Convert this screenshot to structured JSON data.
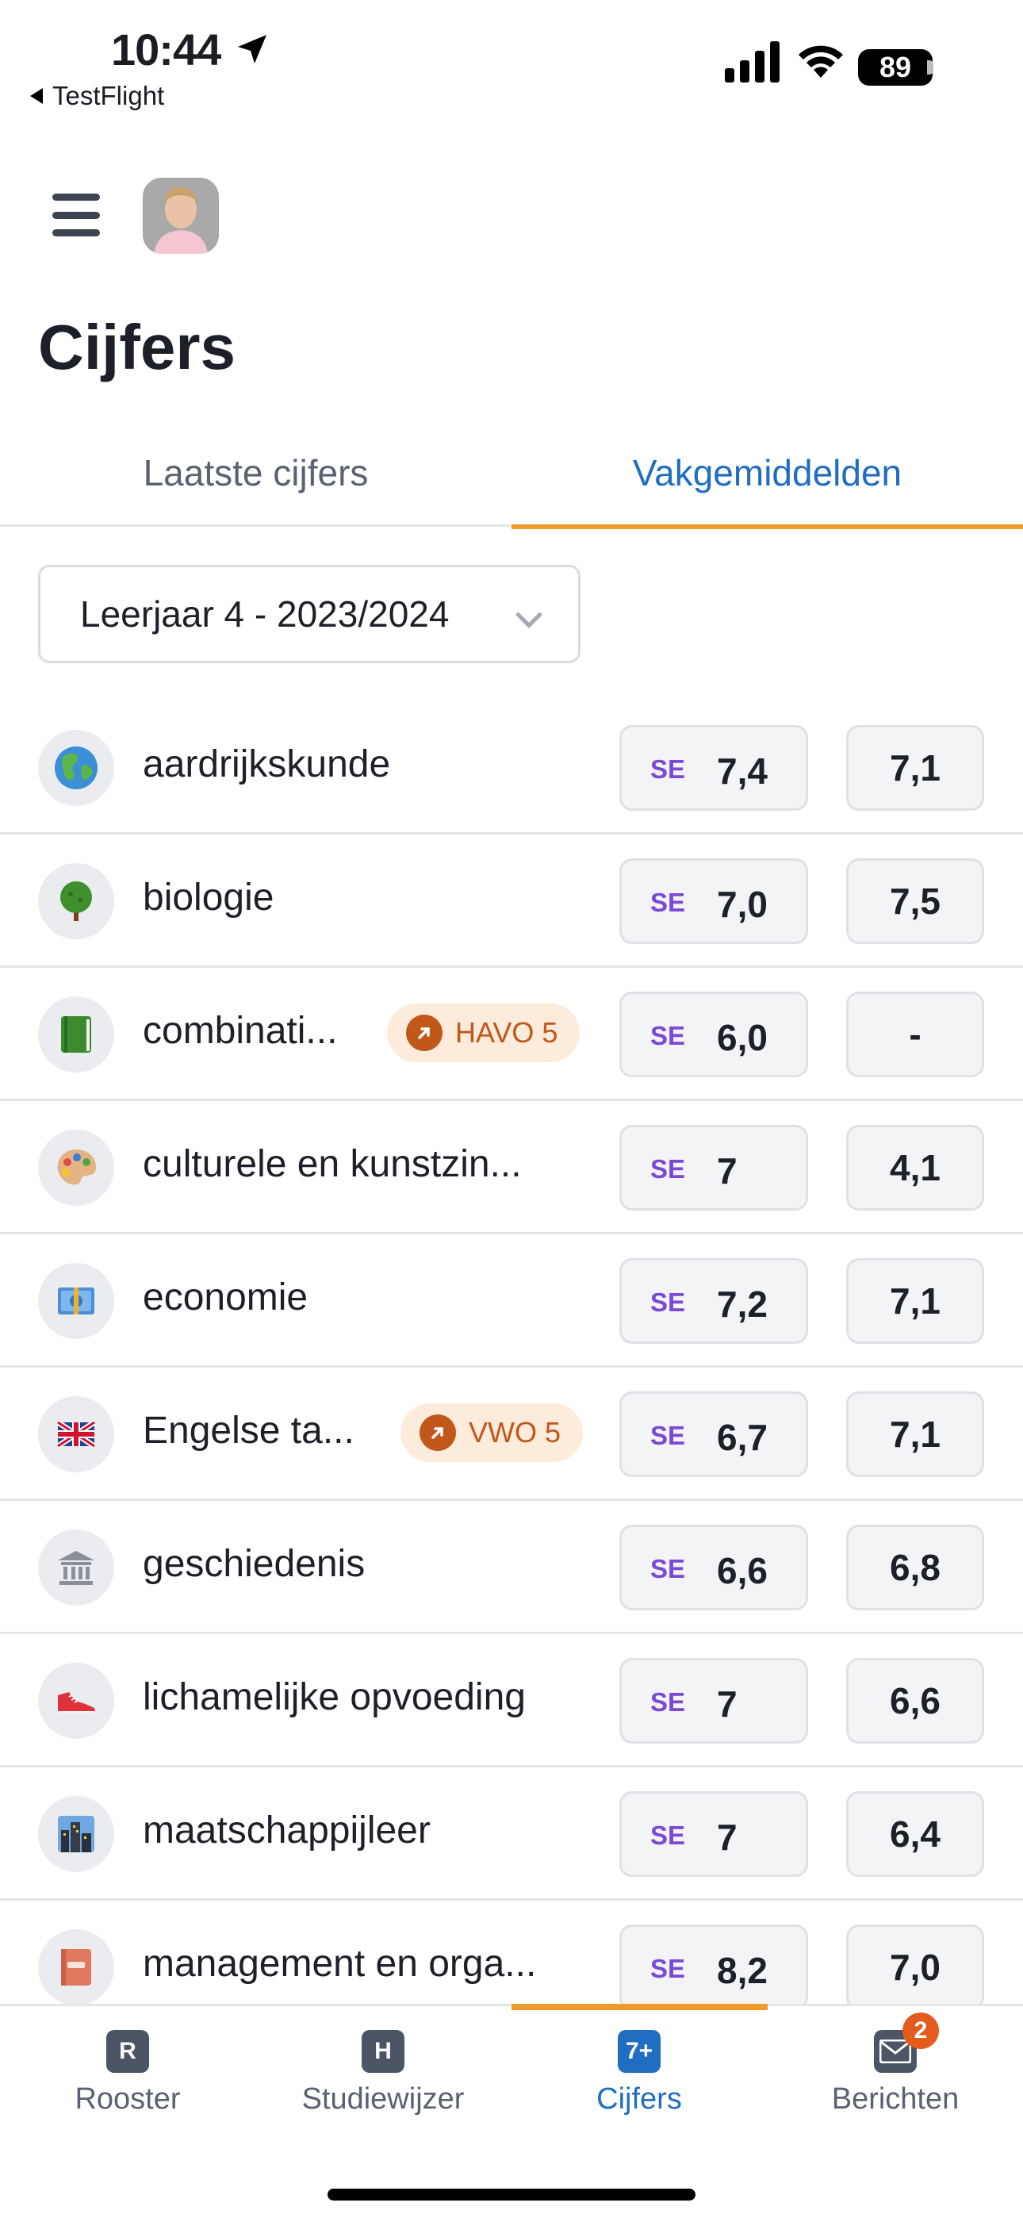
{
  "status_bar": {
    "time": "10:44",
    "back_app": "TestFlight",
    "battery": "89"
  },
  "header": {
    "title": "Cijfers"
  },
  "tabs": [
    {
      "label": "Laatste cijfers",
      "active": false
    },
    {
      "label": "Vakgemiddelden",
      "active": true
    }
  ],
  "year_select": {
    "value": "Leerjaar 4 - 2023/2024"
  },
  "subjects": [
    {
      "name": "aardrijkskunde",
      "icon": "globe-icon",
      "se_label": "SE",
      "se": "7,4",
      "avg": "7,1"
    },
    {
      "name": "biologie",
      "icon": "tree-icon",
      "se_label": "SE",
      "se": "7,0",
      "avg": "7,5"
    },
    {
      "name": "combinati...",
      "icon": "book-icon",
      "badge": "HAVO 5",
      "se_label": "SE",
      "se": "6,0",
      "avg": "-"
    },
    {
      "name": "culturele en kunstzin...",
      "icon": "palette-icon",
      "se_label": "SE",
      "se": "7",
      "avg": "4,1"
    },
    {
      "name": "economie",
      "icon": "banknote-icon",
      "se_label": "SE",
      "se": "7,2",
      "avg": "7,1"
    },
    {
      "name": "Engelse ta...",
      "icon": "uk-flag-icon",
      "badge": "VWO 5",
      "se_label": "SE",
      "se": "6,7",
      "avg": "7,1"
    },
    {
      "name": "geschiedenis",
      "icon": "museum-icon",
      "se_label": "SE",
      "se": "6,6",
      "avg": "6,8"
    },
    {
      "name": "lichamelijke opvoeding",
      "icon": "sneaker-icon",
      "se_label": "SE",
      "se": "7",
      "avg": "6,6"
    },
    {
      "name": "maatschappijleer",
      "icon": "city-icon",
      "se_label": "SE",
      "se": "7",
      "avg": "6,4"
    },
    {
      "name": "management en orga...",
      "icon": "notebook-icon",
      "se_label": "SE",
      "se": "8,2",
      "avg": "7,0"
    }
  ],
  "bottom_nav": [
    {
      "label": "Rooster",
      "icon_letter": "R",
      "active": false
    },
    {
      "label": "Studiewijzer",
      "icon_letter": "H",
      "active": false
    },
    {
      "label": "Cijfers",
      "icon_letter": "7+",
      "active": true
    },
    {
      "label": "Berichten",
      "icon_letter": "",
      "badge": "2",
      "active": false
    }
  ],
  "colors": {
    "accent_blue": "#1f6ec2",
    "accent_orange": "#f09a2a",
    "se_purple": "#7b49d6",
    "badge_orange": "#c2571a"
  }
}
